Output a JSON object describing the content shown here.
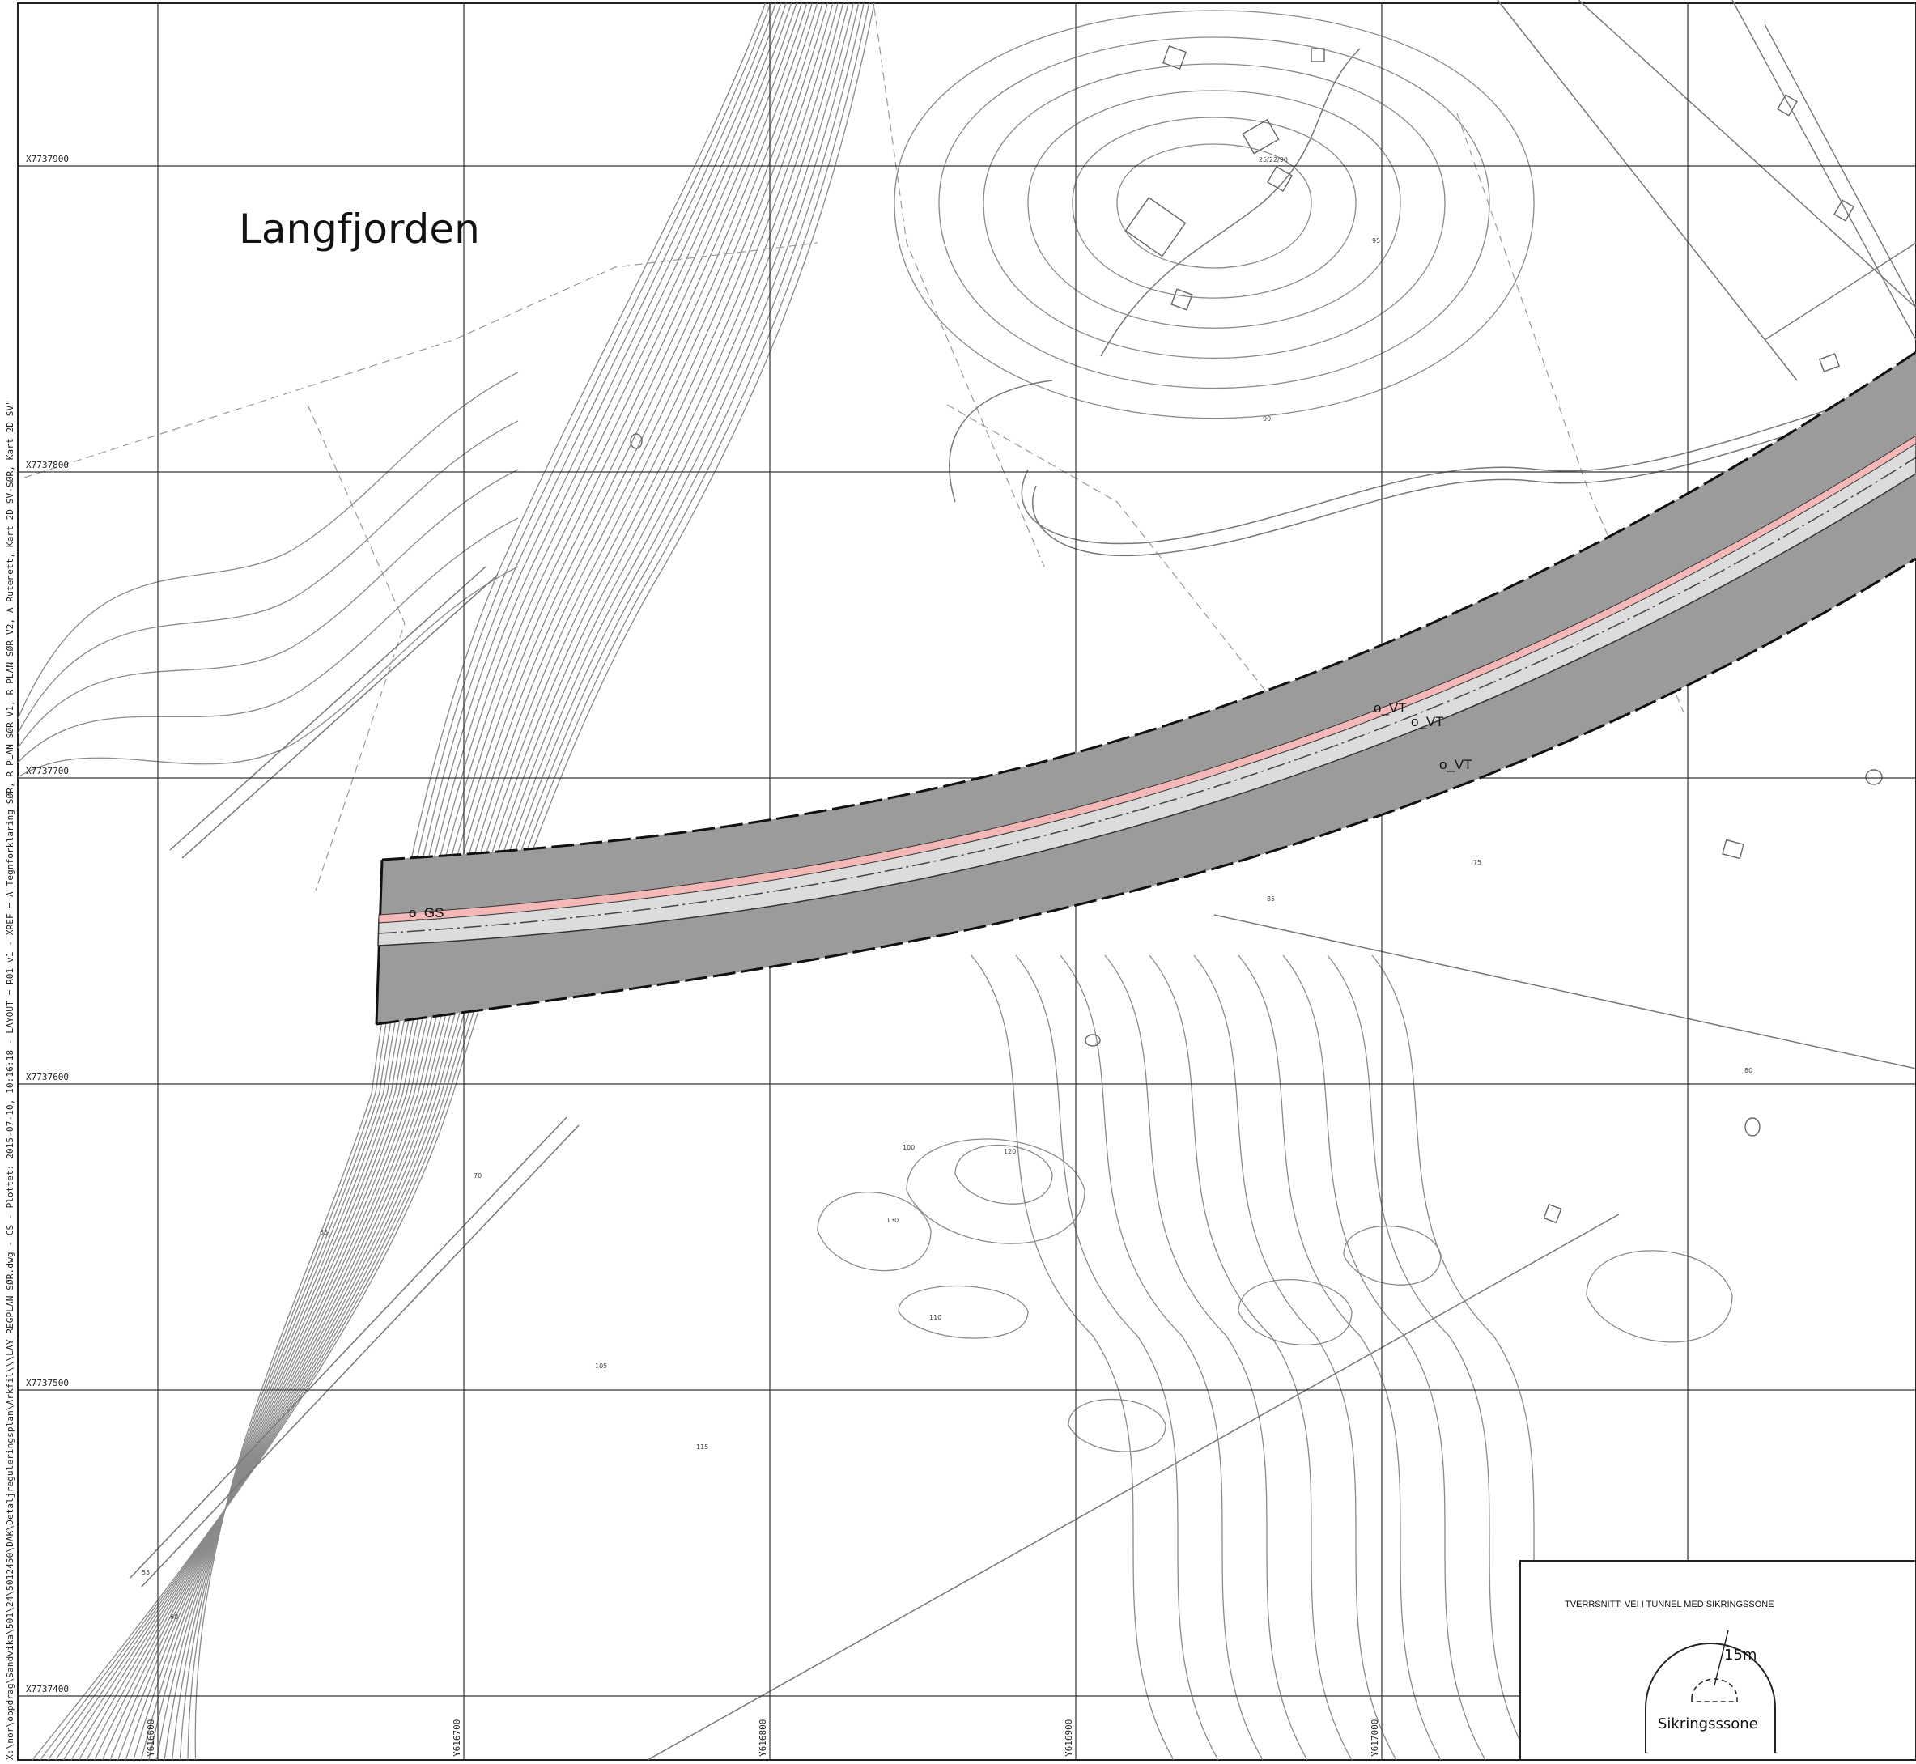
{
  "map": {
    "place_name": "Langfjorden",
    "side_text": "X:\\nor\\oppdrag\\Sandvika\\501\\24\\5012450\\DAK\\Detaljreguleringsplan\\Arkfil\\\\\\LAY_REGPLAN SØR.dwg - CS - Plottet: 2015-07-10, 10:16:18 - LAYOUT = R01_v1 - XREF = A_Tegnforklaring_SØR, R_PLAN_SØR_V1, R_PLAN_SØR_V2, A_Rutenett, Kart_2D_SV-SØR, Kart_2D_SV\"",
    "grid_x_labels": [
      "X7737900",
      "X7737800",
      "X7737700",
      "X7737600",
      "X7737500",
      "X7737400"
    ],
    "grid_y_labels": [
      "Y616600",
      "Y616700",
      "Y616800",
      "Y616900",
      "Y617000"
    ],
    "property_label": "25/22/90",
    "zone_labels": [
      "o_GS",
      "o_VT",
      "o_VT",
      "o_VT"
    ],
    "contour_labels": [
      "55",
      "60",
      "65",
      "70",
      "75",
      "80",
      "85",
      "90",
      "95",
      "100",
      "105",
      "110",
      "115",
      "120",
      "130"
    ]
  },
  "legend": {
    "title": "TVERRSNITT: VEI I TUNNEL MED SIKRINGSSONE",
    "radius_label": "15m",
    "zone_name": "Sikringsssone"
  },
  "colors": {
    "road_fill": "#9b9b9b",
    "gs_strip": "#f4b8b8",
    "lane": "#d9d9d9",
    "contour": "#8a8a8a",
    "grid": "#333333"
  }
}
